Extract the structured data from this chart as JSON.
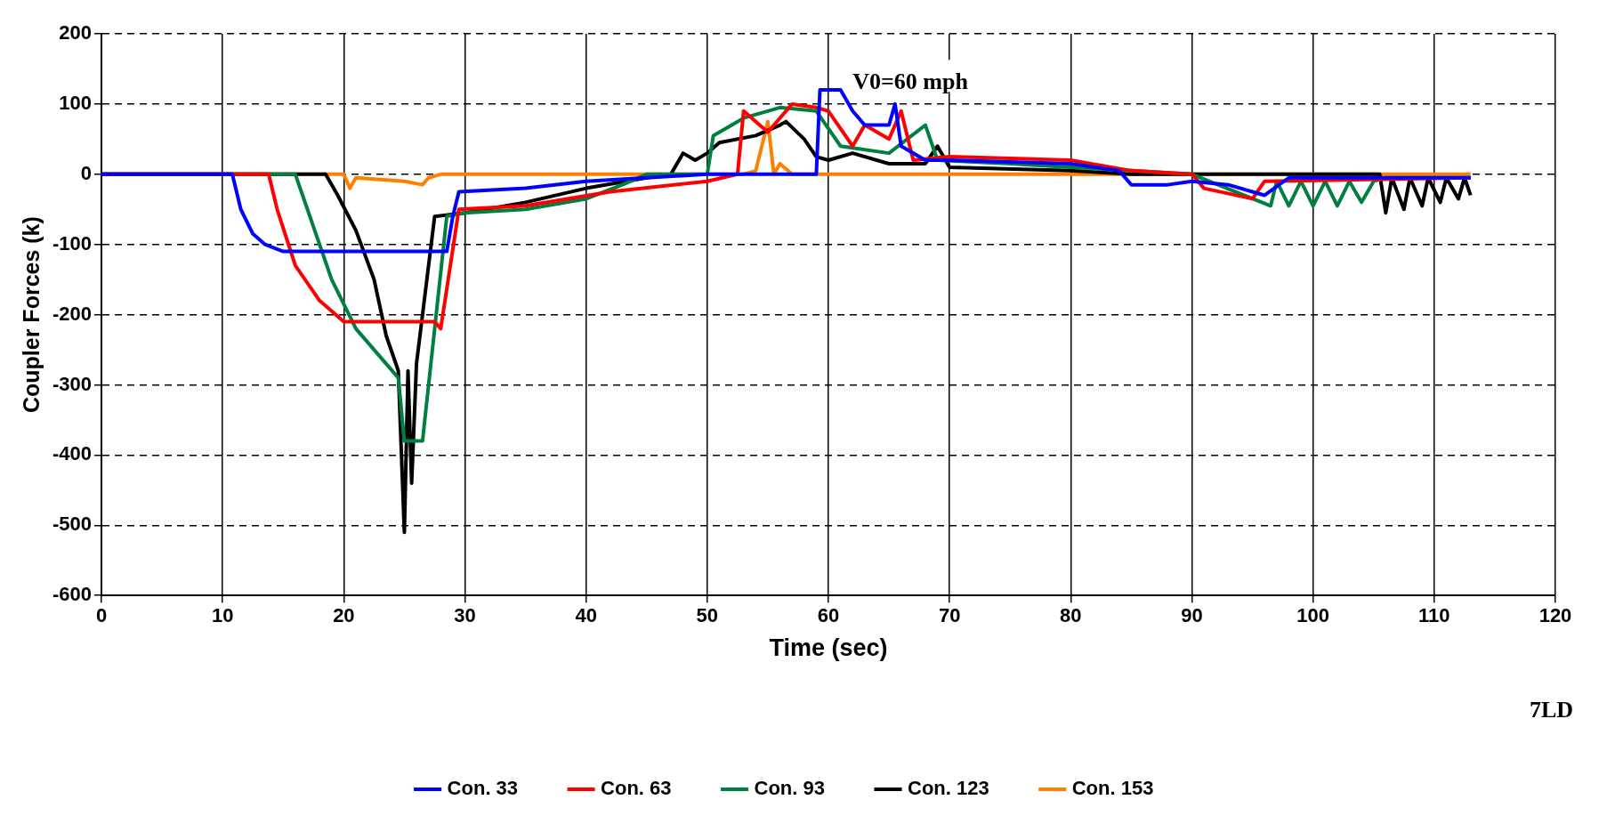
{
  "chart_data": {
    "type": "line",
    "xlabel": "Time (sec)",
    "ylabel": "Coupler Forces (k)",
    "xlim": [
      0,
      120
    ],
    "xticks": [
      0,
      10,
      20,
      30,
      40,
      50,
      60,
      70,
      80,
      90,
      100,
      110,
      120
    ],
    "ylim": [
      -600,
      200
    ],
    "yticks": [
      -600,
      -500,
      -400,
      -300,
      -200,
      -100,
      0,
      100,
      200
    ],
    "grid": true,
    "legend": "bottom",
    "marker": "none",
    "line_style": "solid",
    "annotations": [
      "V0=60 mph",
      "7LD"
    ],
    "series": [
      {
        "name": "Con. 33",
        "color": "#0000ff",
        "x": [
          0,
          10.8,
          11.5,
          12.5,
          13.5,
          15,
          28.5,
          29,
          29.5,
          35,
          40,
          45,
          50,
          59,
          59.3,
          61,
          62,
          63,
          65,
          65.5,
          66,
          68,
          70,
          80,
          84,
          85,
          88,
          90,
          93,
          96,
          98,
          113
        ],
        "values": [
          0,
          0,
          -50,
          -85,
          -100,
          -110,
          -110,
          -60,
          -25,
          -20,
          -10,
          -5,
          0,
          0,
          120,
          120,
          90,
          70,
          70,
          100,
          40,
          20,
          20,
          15,
          5,
          -15,
          -15,
          -10,
          -15,
          -30,
          -5,
          -5
        ]
      },
      {
        "name": "Con. 63",
        "color": "#ff0000",
        "x": [
          0,
          13.8,
          14.5,
          16,
          18,
          20,
          27.5,
          28,
          29.5,
          35,
          42,
          50,
          52.5,
          53,
          55,
          57,
          59,
          60,
          62,
          63,
          65,
          66,
          67,
          70,
          80,
          85,
          90,
          91,
          95,
          96,
          113
        ],
        "values": [
          0,
          0,
          -50,
          -130,
          -180,
          -210,
          -210,
          -220,
          -50,
          -45,
          -25,
          -10,
          0,
          90,
          60,
          100,
          95,
          90,
          40,
          70,
          50,
          90,
          20,
          25,
          20,
          5,
          0,
          -20,
          -35,
          -10,
          -5
        ]
      },
      {
        "name": "Con. 93",
        "color": "#008040",
        "x": [
          0,
          16,
          17,
          19,
          21,
          24.5,
          25,
          26.5,
          28.5,
          30,
          35,
          40,
          43,
          45,
          50,
          50.5,
          53,
          56,
          59,
          61,
          65,
          68,
          69,
          75,
          80,
          85,
          90,
          96.5,
          97,
          98,
          99,
          100,
          101,
          102,
          103,
          104,
          105,
          106,
          113
        ],
        "values": [
          0,
          0,
          -50,
          -150,
          -220,
          -290,
          -380,
          -380,
          -60,
          -55,
          -50,
          -35,
          -15,
          0,
          0,
          55,
          80,
          95,
          90,
          40,
          30,
          70,
          20,
          15,
          10,
          5,
          0,
          -45,
          -10,
          -45,
          -10,
          -45,
          -10,
          -45,
          -10,
          -40,
          -10,
          -5,
          -5
        ]
      },
      {
        "name": "Con. 123",
        "color": "#000000",
        "x": [
          0,
          18.5,
          19.5,
          21,
          22.5,
          23.5,
          24.5,
          25,
          25.3,
          25.6,
          26,
          27.5,
          30,
          35,
          40,
          45,
          47,
          47.5,
          48,
          49,
          50,
          51,
          54,
          56,
          56.5,
          58,
          59,
          60,
          62,
          65,
          68,
          69,
          70,
          80,
          85,
          105.5,
          106,
          106.5,
          107.5,
          108,
          109,
          109.5,
          110.5,
          111,
          112,
          112.5,
          113
        ],
        "values": [
          0,
          0,
          -30,
          -80,
          -150,
          -230,
          -280,
          -510,
          -280,
          -440,
          -270,
          -60,
          -55,
          -40,
          -20,
          -5,
          0,
          15,
          30,
          20,
          30,
          45,
          55,
          70,
          75,
          50,
          25,
          20,
          30,
          15,
          15,
          40,
          10,
          5,
          0,
          0,
          -55,
          -5,
          -50,
          -5,
          -45,
          -5,
          -40,
          -5,
          -35,
          -5,
          -30
        ]
      },
      {
        "name": "Con. 153",
        "color": "#ff8000",
        "x": [
          0,
          20,
          20.5,
          21,
          25,
          26.5,
          27,
          28,
          53,
          54,
          55,
          55.5,
          56,
          57,
          113
        ],
        "values": [
          0,
          0,
          -20,
          -5,
          -10,
          -15,
          -5,
          0,
          0,
          5,
          75,
          0,
          15,
          0,
          0
        ]
      }
    ]
  }
}
